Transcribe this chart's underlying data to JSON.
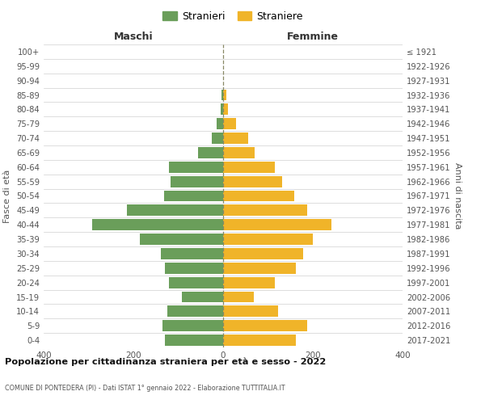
{
  "age_groups": [
    "0-4",
    "5-9",
    "10-14",
    "15-19",
    "20-24",
    "25-29",
    "30-34",
    "35-39",
    "40-44",
    "45-49",
    "50-54",
    "55-59",
    "60-64",
    "65-69",
    "70-74",
    "75-79",
    "80-84",
    "85-89",
    "90-94",
    "95-99",
    "100+"
  ],
  "birth_years": [
    "2017-2021",
    "2012-2016",
    "2007-2011",
    "2002-2006",
    "1997-2001",
    "1992-1996",
    "1987-1991",
    "1982-1986",
    "1977-1981",
    "1972-1976",
    "1967-1971",
    "1962-1966",
    "1957-1961",
    "1952-1956",
    "1947-1951",
    "1942-1946",
    "1937-1941",
    "1932-1936",
    "1927-1931",
    "1922-1926",
    "≤ 1921"
  ],
  "maschi": [
    130,
    135,
    125,
    92,
    120,
    130,
    138,
    185,
    292,
    215,
    132,
    118,
    120,
    55,
    25,
    15,
    5,
    3,
    0,
    0,
    0
  ],
  "femmine": [
    162,
    187,
    122,
    68,
    115,
    162,
    178,
    200,
    242,
    188,
    158,
    132,
    115,
    70,
    55,
    28,
    10,
    8,
    0,
    0,
    0
  ],
  "color_maschi": "#6a9e5a",
  "color_femmine": "#f0b429",
  "title": "Popolazione per cittadinanza straniera per età e sesso - 2022",
  "subtitle": "COMUNE DI PONTEDERA (PI) - Dati ISTAT 1° gennaio 2022 - Elaborazione TUTTITALIA.IT",
  "xlabel_left": "Maschi",
  "xlabel_right": "Femmine",
  "ylabel_left": "Fasce di età",
  "ylabel_right": "Anni di nascita",
  "legend_maschi": "Stranieri",
  "legend_femmine": "Straniere",
  "xlim": 400,
  "bg_color": "#ffffff",
  "grid_color": "#d0d0d0"
}
